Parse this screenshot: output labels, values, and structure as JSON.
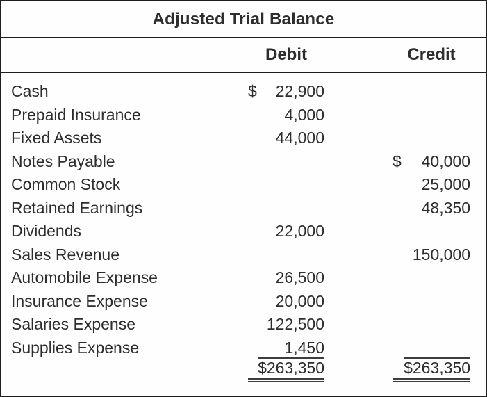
{
  "title": "Adjusted Trial Balance",
  "columns": {
    "debit": "Debit",
    "credit": "Credit"
  },
  "rows": [
    {
      "account": "Cash",
      "debit_cur": "$",
      "debit": "22,900"
    },
    {
      "account": "Prepaid Insurance",
      "debit": "4,000"
    },
    {
      "account": "Fixed Assets",
      "debit": "44,000"
    },
    {
      "account": "Notes Payable",
      "credit_cur": "$",
      "credit": "40,000"
    },
    {
      "account": "Common Stock",
      "credit": "25,000"
    },
    {
      "account": "Retained Earnings",
      "credit": "48,350"
    },
    {
      "account": "Dividends",
      "debit": "22,000"
    },
    {
      "account": "Sales Revenue",
      "credit": "150,000"
    },
    {
      "account": "Automobile Expense",
      "debit": "26,500"
    },
    {
      "account": "Insurance Expense",
      "debit": "20,000"
    },
    {
      "account": "Salaries Expense",
      "debit": "122,500"
    },
    {
      "account": "Supplies Expense",
      "debit": "1,450"
    }
  ],
  "totals": {
    "debit": "$263,350",
    "credit": "$263,350"
  },
  "colors": {
    "text": "#2d2d2d",
    "border": "#1f1f1f",
    "rule": "#3d3d3d",
    "background": "#fffefe"
  }
}
